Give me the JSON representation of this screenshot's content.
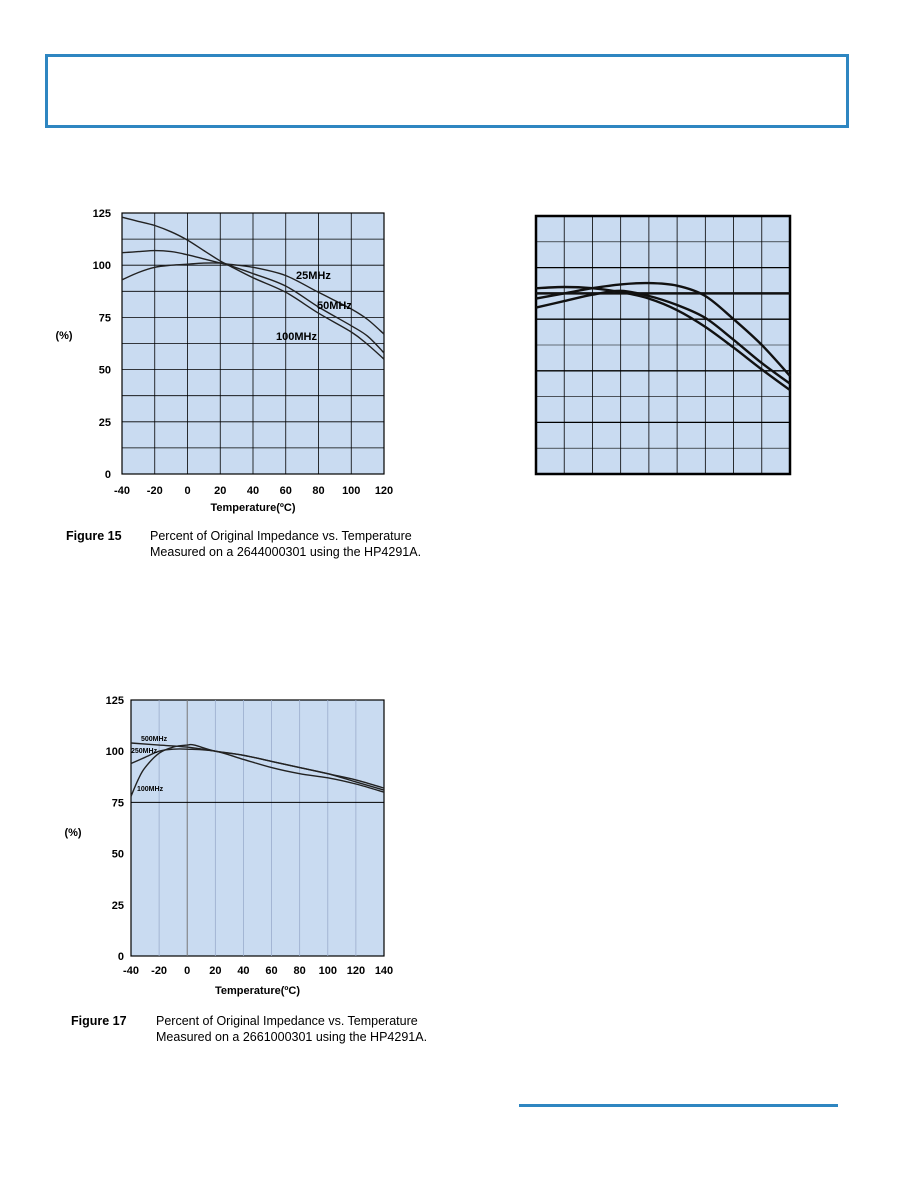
{
  "page": {
    "header_color": "#2e86c1",
    "plot_bg": "#c9dbf1"
  },
  "chart_data": [
    {
      "id": "fig15",
      "type": "line",
      "title": "",
      "xlabel": "Temperature(ºC)",
      "ylabel": "(%)",
      "xlim": [
        -40,
        120
      ],
      "ylim": [
        0,
        125
      ],
      "xticks": [
        "-40",
        "-20",
        "0",
        "20",
        "40",
        "60",
        "80",
        "100",
        "120"
      ],
      "yticks": [
        "0",
        "25",
        "50",
        "75",
        "100",
        "125"
      ],
      "grid": true,
      "series": [
        {
          "name": "25MHz",
          "x": [
            -40,
            -30,
            -20,
            -10,
            0,
            10,
            20,
            25,
            40,
            60,
            80,
            100,
            110,
            120
          ],
          "y": [
            93,
            96.5,
            99,
            100,
            100.5,
            101,
            101,
            100.5,
            99,
            95,
            87,
            79,
            74,
            67
          ]
        },
        {
          "name": "50MHz",
          "x": [
            -40,
            -30,
            -20,
            -10,
            0,
            10,
            20,
            25,
            40,
            60,
            80,
            100,
            110,
            120
          ],
          "y": [
            106,
            106.5,
            107,
            106.5,
            105,
            103,
            101,
            100,
            96,
            90,
            80,
            71,
            66,
            58
          ]
        },
        {
          "name": "100MHz",
          "x": [
            -40,
            -30,
            -20,
            -10,
            0,
            10,
            20,
            25,
            40,
            60,
            80,
            100,
            110,
            120
          ],
          "y": [
            123,
            121,
            119,
            116,
            112,
            107,
            102,
            100,
            94,
            87,
            77,
            68,
            62,
            55
          ]
        }
      ],
      "labels": [
        "25MHz",
        "50MHz",
        "100MHz"
      ]
    },
    {
      "id": "fig16",
      "type": "line",
      "title": "",
      "xlabel": "",
      "ylabel": "",
      "grid": true,
      "series": [
        {
          "x": [
            0,
            1,
            2,
            3,
            4,
            5,
            6,
            7,
            8,
            9
          ],
          "y": [
            7.2,
            7.25,
            7.2,
            7.05,
            6.8,
            6.35,
            5.7,
            4.9,
            4.05,
            3.25
          ]
        },
        {
          "x": [
            0,
            1,
            2,
            3,
            4,
            5,
            6,
            7,
            8,
            9
          ],
          "y": [
            6.8,
            7.0,
            7.2,
            7.35,
            7.4,
            7.3,
            6.9,
            6.0,
            5.0,
            3.8
          ]
        },
        {
          "x": [
            0,
            1,
            2,
            3,
            4,
            5,
            6,
            7,
            8,
            9
          ],
          "y": [
            6.45,
            6.7,
            6.95,
            7.1,
            6.9,
            6.55,
            6.05,
            5.2,
            4.3,
            3.5
          ]
        },
        {
          "x": [
            0,
            9
          ],
          "y": [
            7.0,
            7.0
          ]
        }
      ]
    },
    {
      "id": "fig17",
      "type": "line",
      "title": "",
      "xlabel": "Temperature(ºC)",
      "ylabel": "(%)",
      "xlim": [
        -40,
        140
      ],
      "ylim": [
        0,
        125
      ],
      "xticks": [
        "-40",
        "-20",
        "0",
        "20",
        "40",
        "60",
        "80",
        "100",
        "120",
        "140"
      ],
      "yticks": [
        "0",
        "25",
        "50",
        "75",
        "100",
        "125"
      ],
      "grid": true,
      "series": [
        {
          "name": "500MHz",
          "x": [
            -40,
            -20,
            0,
            20,
            40,
            60,
            80,
            100,
            120,
            140
          ],
          "y": [
            104,
            103,
            102,
            100,
            98,
            95,
            92,
            89,
            85,
            81
          ]
        },
        {
          "name": "250MHz",
          "x": [
            -40,
            -30,
            -20,
            -10,
            0,
            20,
            40,
            60,
            80,
            100,
            120,
            140
          ],
          "y": [
            94,
            97,
            100,
            101,
            101,
            100,
            96,
            92,
            89,
            87,
            84,
            80
          ]
        },
        {
          "name": "100MHz",
          "x": [
            -40,
            -35,
            -30,
            -20,
            -10,
            0,
            5,
            20,
            40,
            60,
            80,
            100,
            120,
            140
          ],
          "y": [
            78,
            86,
            92,
            99,
            102,
            103,
            103,
            100,
            98,
            95,
            92,
            89,
            86,
            82
          ]
        }
      ],
      "labels": [
        "500MHz",
        "250MHz",
        "100MHz"
      ]
    }
  ],
  "captions": [
    {
      "figure": "Figure 15",
      "line1": "Percent of Original Impedance vs. Temperature",
      "line2": "Measured on a 2644000301 using the HP4291A."
    },
    {
      "figure": "Figure 17",
      "line1": "Percent of Original Impedance vs. Temperature",
      "line2": "Measured on a 2661000301 using the HP4291A."
    }
  ]
}
